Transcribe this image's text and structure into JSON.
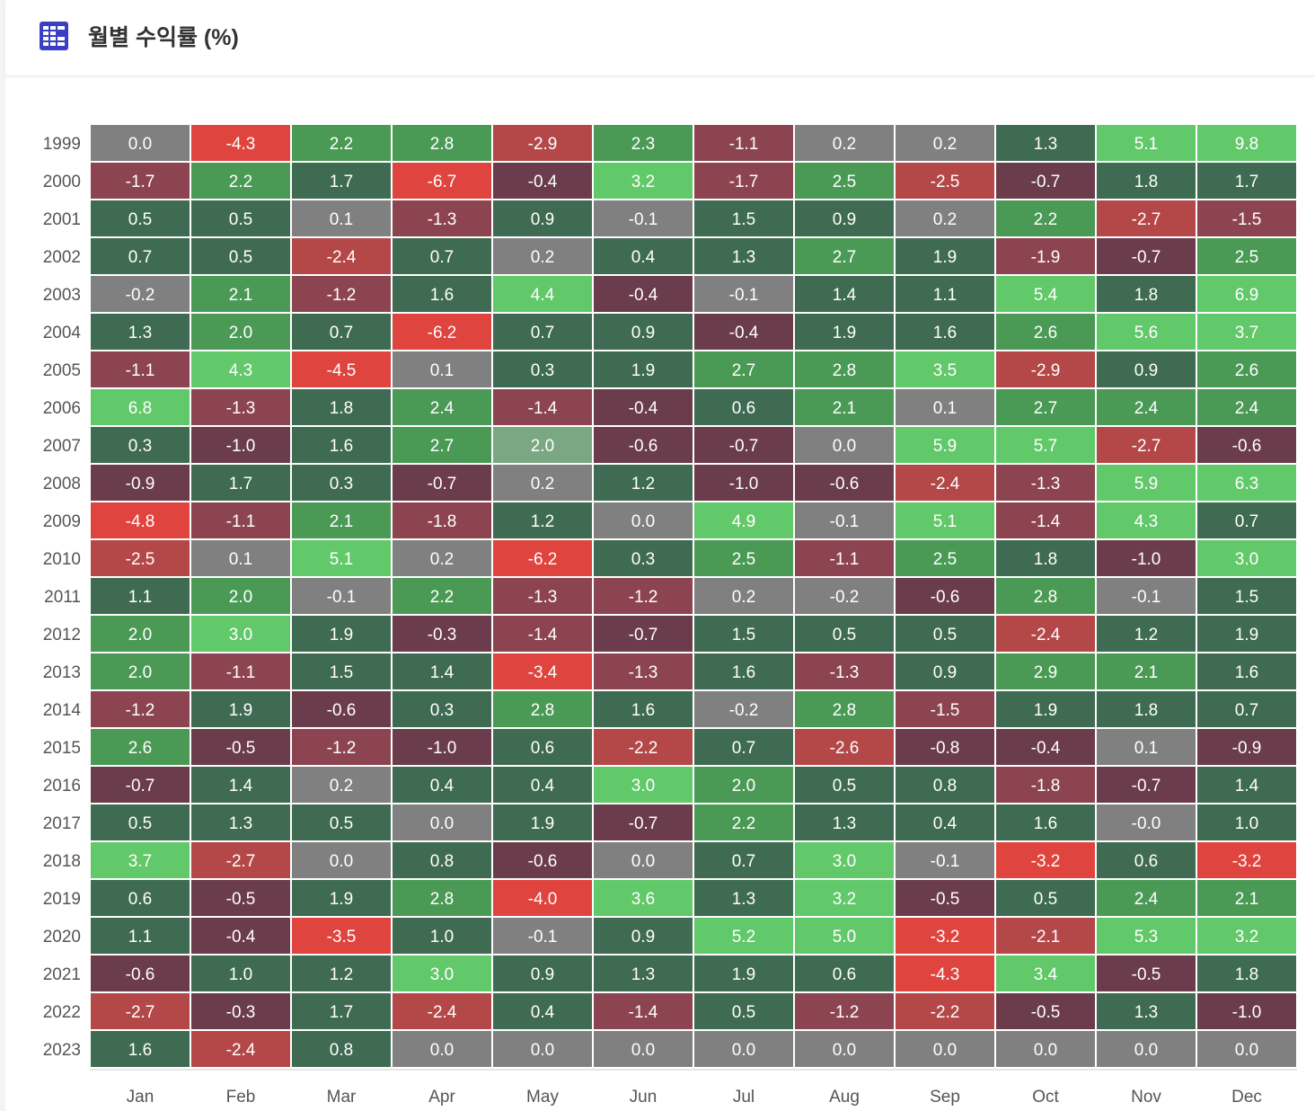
{
  "header": {
    "title": "월별 수익률 (%)",
    "icon": "grid-table-icon"
  },
  "colors": {
    "strong_positive": "#62c96a",
    "positive": "#4a9a56",
    "mild_positive": "#3f6b52",
    "neutral": "#808080",
    "mild_negative": "#6b3c4c",
    "negative": "#8c4550",
    "strong_negative": "#b44848",
    "extreme_negative": "#e0443e"
  },
  "chart_data": {
    "type": "heatmap",
    "title": "월별 수익률 (%)",
    "x": [
      "Jan",
      "Feb",
      "Mar",
      "Apr",
      "May",
      "Jun",
      "Jul",
      "Aug",
      "Sep",
      "Oct",
      "Nov",
      "Dec"
    ],
    "y": [
      "1999",
      "2000",
      "2001",
      "2002",
      "2003",
      "2004",
      "2005",
      "2006",
      "2007",
      "2008",
      "2009",
      "2010",
      "2011",
      "2012",
      "2013",
      "2014",
      "2015",
      "2016",
      "2017",
      "2018",
      "2019",
      "2020",
      "2021",
      "2022",
      "2023"
    ],
    "values": [
      [
        "0.0",
        "-4.3",
        "2.2",
        "2.8",
        "-2.9",
        "2.3",
        "-1.1",
        "0.2",
        "0.2",
        "1.3",
        "5.1",
        "9.8"
      ],
      [
        "-1.7",
        "2.2",
        "1.7",
        "-6.7",
        "-0.4",
        "3.2",
        "-1.7",
        "2.5",
        "-2.5",
        "-0.7",
        "1.8",
        "1.7"
      ],
      [
        "0.5",
        "0.5",
        "0.1",
        "-1.3",
        "0.9",
        "-0.1",
        "1.5",
        "0.9",
        "0.2",
        "2.2",
        "-2.7",
        "-1.5"
      ],
      [
        "0.7",
        "0.5",
        "-2.4",
        "0.7",
        "0.2",
        "0.4",
        "1.3",
        "2.7",
        "1.9",
        "-1.9",
        "-0.7",
        "2.5"
      ],
      [
        "-0.2",
        "2.1",
        "-1.2",
        "1.6",
        "4.4",
        "-0.4",
        "-0.1",
        "1.4",
        "1.1",
        "5.4",
        "1.8",
        "6.9"
      ],
      [
        "1.3",
        "2.0",
        "0.7",
        "-6.2",
        "0.7",
        "0.9",
        "-0.4",
        "1.9",
        "1.6",
        "2.6",
        "5.6",
        "3.7"
      ],
      [
        "-1.1",
        "4.3",
        "-4.5",
        "0.1",
        "0.3",
        "1.9",
        "2.7",
        "2.8",
        "3.5",
        "-2.9",
        "0.9",
        "2.6"
      ],
      [
        "6.8",
        "-1.3",
        "1.8",
        "2.4",
        "-1.4",
        "-0.4",
        "0.6",
        "2.1",
        "0.1",
        "2.7",
        "2.4",
        "2.4"
      ],
      [
        "0.3",
        "-1.0",
        "1.6",
        "2.7",
        "2.0",
        "-0.6",
        "-0.7",
        "0.0",
        "5.9",
        "5.7",
        "-2.7",
        "-0.6"
      ],
      [
        "-0.9",
        "1.7",
        "0.3",
        "-0.7",
        "0.2",
        "1.2",
        "-1.0",
        "-0.6",
        "-2.4",
        "-1.3",
        "5.9",
        "6.3"
      ],
      [
        "-4.8",
        "-1.1",
        "2.1",
        "-1.8",
        "1.2",
        "0.0",
        "4.9",
        "-0.1",
        "5.1",
        "-1.4",
        "4.3",
        "0.7"
      ],
      [
        "-2.5",
        "0.1",
        "5.1",
        "0.2",
        "-6.2",
        "0.3",
        "2.5",
        "-1.1",
        "2.5",
        "1.8",
        "-1.0",
        "3.0"
      ],
      [
        "1.1",
        "2.0",
        "-0.1",
        "2.2",
        "-1.3",
        "-1.2",
        "0.2",
        "-0.2",
        "-0.6",
        "2.8",
        "-0.1",
        "1.5"
      ],
      [
        "2.0",
        "3.0",
        "1.9",
        "-0.3",
        "-1.4",
        "-0.7",
        "1.5",
        "0.5",
        "0.5",
        "-2.4",
        "1.2",
        "1.9"
      ],
      [
        "2.0",
        "-1.1",
        "1.5",
        "1.4",
        "-3.4",
        "-1.3",
        "1.6",
        "-1.3",
        "0.9",
        "2.9",
        "2.1",
        "1.6"
      ],
      [
        "-1.2",
        "1.9",
        "-0.6",
        "0.3",
        "2.8",
        "1.6",
        "-0.2",
        "2.8",
        "-1.5",
        "1.9",
        "1.8",
        "0.7"
      ],
      [
        "2.6",
        "-0.5",
        "-1.2",
        "-1.0",
        "0.6",
        "-2.2",
        "0.7",
        "-2.6",
        "-0.8",
        "-0.4",
        "0.1",
        "-0.9"
      ],
      [
        "-0.7",
        "1.4",
        "0.2",
        "0.4",
        "0.4",
        "3.0",
        "2.0",
        "0.5",
        "0.8",
        "-1.8",
        "-0.7",
        "1.4"
      ],
      [
        "0.5",
        "1.3",
        "0.5",
        "0.0",
        "1.9",
        "-0.7",
        "2.2",
        "1.3",
        "0.4",
        "1.6",
        "-0.0",
        "1.0"
      ],
      [
        "3.7",
        "-2.7",
        "0.0",
        "0.8",
        "-0.6",
        "0.0",
        "0.7",
        "3.0",
        "-0.1",
        "-3.2",
        "0.6",
        "-3.2"
      ],
      [
        "0.6",
        "-0.5",
        "1.9",
        "2.8",
        "-4.0",
        "3.6",
        "1.3",
        "3.2",
        "-0.5",
        "0.5",
        "2.4",
        "2.1"
      ],
      [
        "1.1",
        "-0.4",
        "-3.5",
        "1.0",
        "-0.1",
        "0.9",
        "5.2",
        "5.0",
        "-3.2",
        "-2.1",
        "5.3",
        "3.2"
      ],
      [
        "-0.6",
        "1.0",
        "1.2",
        "3.0",
        "0.9",
        "1.3",
        "1.9",
        "0.6",
        "-4.3",
        "3.4",
        "-0.5",
        "1.8"
      ],
      [
        "-2.7",
        "-0.3",
        "1.7",
        "-2.4",
        "0.4",
        "-1.4",
        "0.5",
        "-1.2",
        "-2.2",
        "-0.5",
        "1.3",
        "-1.0"
      ],
      [
        "1.6",
        "-2.4",
        "0.8",
        "0.0",
        "0.0",
        "0.0",
        "0.0",
        "0.0",
        "0.0",
        "0.0",
        "0.0",
        "0.0"
      ]
    ],
    "highlighted_cell": {
      "year": "2007",
      "month": "May"
    }
  }
}
